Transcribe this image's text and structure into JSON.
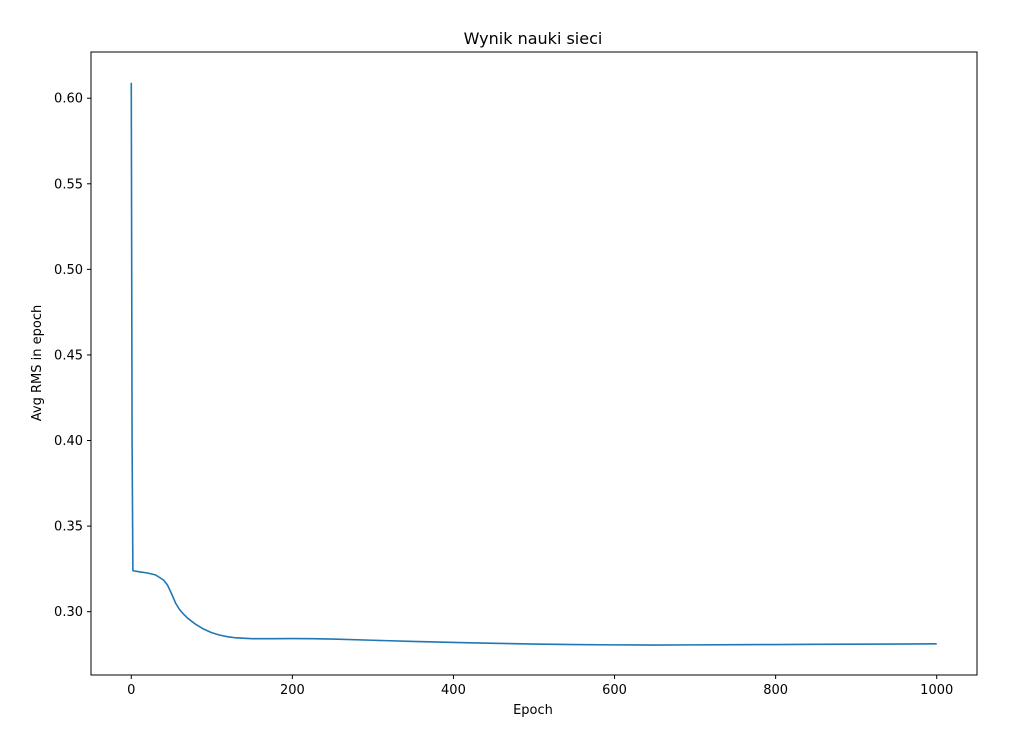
{
  "chart_data": {
    "type": "line",
    "title": "Wynik nauki sieci",
    "xlabel": "Epoch",
    "ylabel": "Avg RMS in epoch",
    "xlim": [
      -50,
      1050
    ],
    "ylim": [
      0.263,
      0.627
    ],
    "xticks": [
      0,
      200,
      400,
      600,
      800,
      1000
    ],
    "xtick_labels": [
      "0",
      "200",
      "400",
      "600",
      "800",
      "1000"
    ],
    "yticks": [
      0.3,
      0.35,
      0.4,
      0.45,
      0.5,
      0.55,
      0.6
    ],
    "ytick_labels": [
      "0.30",
      "0.35",
      "0.40",
      "0.45",
      "0.50",
      "0.55",
      "0.60"
    ],
    "grid": false,
    "line_color": "#1f77b4",
    "series": [
      {
        "x": [
          0,
          1,
          2,
          5,
          10,
          20,
          30,
          40,
          45,
          50,
          55,
          60,
          65,
          70,
          80,
          90,
          100,
          110,
          120,
          130,
          150,
          175,
          200,
          225,
          250,
          300,
          350,
          400,
          450,
          500,
          550,
          600,
          650,
          700,
          750,
          800,
          850,
          900,
          950,
          1000
        ],
        "y": [
          0.609,
          0.4,
          0.324,
          0.3237,
          0.3233,
          0.3226,
          0.3215,
          0.3185,
          0.3155,
          0.3105,
          0.305,
          0.3012,
          0.2985,
          0.2962,
          0.2926,
          0.2898,
          0.2877,
          0.2863,
          0.2853,
          0.2847,
          0.2842,
          0.2842,
          0.2843,
          0.2842,
          0.284,
          0.2833,
          0.2826,
          0.282,
          0.2815,
          0.2811,
          0.2808,
          0.2806,
          0.2805,
          0.2806,
          0.2807,
          0.2808,
          0.2809,
          0.281,
          0.2811,
          0.2812
        ]
      }
    ]
  }
}
